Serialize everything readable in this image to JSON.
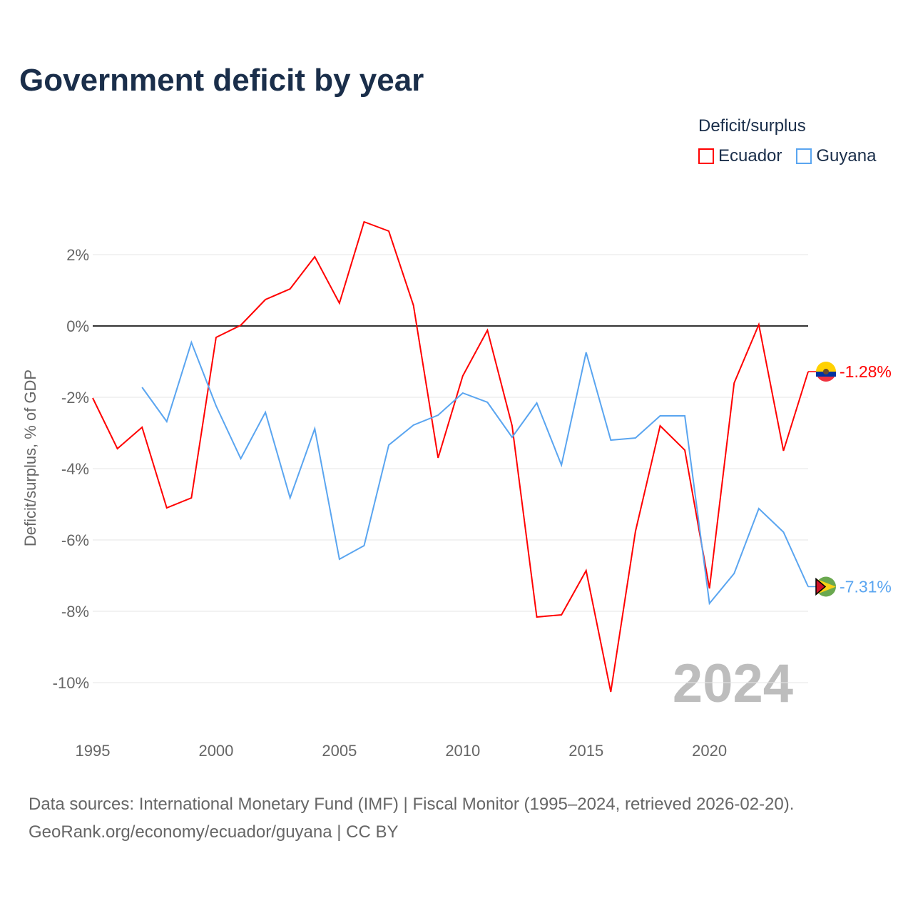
{
  "title": "Government deficit by year",
  "legend": {
    "title": "Deficit/surplus",
    "items": [
      {
        "label": "Ecuador",
        "color": "#ff0000"
      },
      {
        "label": "Guyana",
        "color": "#5aa5f0"
      }
    ]
  },
  "footer": {
    "line1": "Data sources: International Monetary Fund (IMF) | Fiscal Monitor (1995–2024, retrieved 2026-02-20).",
    "line2": "GeoRank.org/economy/ecuador/guyana | CC BY"
  },
  "chart_data": {
    "type": "line",
    "title": "Government deficit by year",
    "xlabel": "",
    "ylabel": "Deficit/surplus, % of GDP",
    "xlim": [
      1995,
      2024
    ],
    "ylim": [
      -11,
      3.5
    ],
    "x_ticks": [
      1995,
      2000,
      2005,
      2010,
      2015,
      2020
    ],
    "y_ticks": [
      2,
      0,
      -2,
      -4,
      -6,
      -8,
      -10
    ],
    "y_tick_labels": [
      "2%",
      "0%",
      "-2%",
      "-4%",
      "-6%",
      "-8%",
      "-10%"
    ],
    "watermark_year": "2024",
    "series": [
      {
        "name": "Ecuador",
        "color": "#ff0000",
        "end_label": "-1.28%",
        "x": [
          1995,
          1996,
          1997,
          1998,
          1999,
          2000,
          2001,
          2002,
          2003,
          2004,
          2005,
          2006,
          2007,
          2008,
          2009,
          2010,
          2011,
          2012,
          2013,
          2014,
          2015,
          2016,
          2017,
          2018,
          2019,
          2020,
          2021,
          2022,
          2023,
          2024
        ],
        "values": [
          -2.02,
          -3.44,
          -2.84,
          -5.1,
          -4.82,
          -0.32,
          0.02,
          0.74,
          1.04,
          1.94,
          0.64,
          2.92,
          2.66,
          0.58,
          -3.7,
          -1.4,
          -0.12,
          -2.8,
          -8.16,
          -8.1,
          -6.86,
          -10.26,
          -5.76,
          -2.8,
          -3.48,
          -7.36,
          -1.6,
          0.04,
          -3.5,
          -1.28
        ]
      },
      {
        "name": "Guyana",
        "color": "#5aa5f0",
        "end_label": "-7.31%",
        "x": [
          1997,
          1998,
          1999,
          2000,
          2001,
          2002,
          2003,
          2004,
          2005,
          2006,
          2007,
          2008,
          2009,
          2010,
          2011,
          2012,
          2013,
          2014,
          2015,
          2016,
          2017,
          2018,
          2019,
          2020,
          2021,
          2022,
          2023,
          2024
        ],
        "values": [
          -1.72,
          -2.68,
          -0.46,
          -2.24,
          -3.72,
          -2.42,
          -4.82,
          -2.88,
          -6.54,
          -6.16,
          -3.34,
          -2.78,
          -2.5,
          -1.88,
          -2.14,
          -3.12,
          -2.16,
          -3.9,
          -0.74,
          -3.2,
          -3.14,
          -2.52,
          -2.52,
          -7.78,
          -6.94,
          -5.12,
          -5.78,
          -7.31
        ]
      }
    ]
  }
}
